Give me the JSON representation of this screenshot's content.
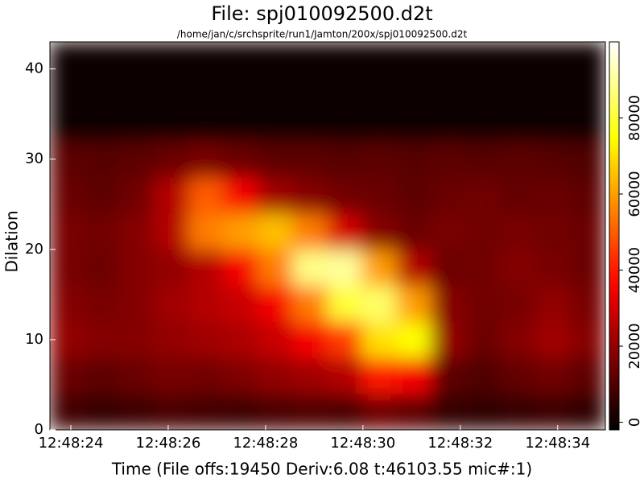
{
  "chart_data": {
    "type": "heatmap",
    "title": "File: spj010092500.d2t",
    "subtitle": "/home/jan/c/srchsprite/run1/Jamton/200x/spj010092500.d2t",
    "x_label": "Time (File offs:19450 Deriv:6.08 t:46103.55 mic#:1)",
    "y_label": "Dilation",
    "xlim": [
      23.57,
      34.98
    ],
    "xticks": [
      {
        "value": 24,
        "label": "12:48:24"
      },
      {
        "value": 26,
        "label": "12:48:26"
      },
      {
        "value": 28,
        "label": "12:48:28"
      },
      {
        "value": 30,
        "label": "12:48:30"
      },
      {
        "value": 32,
        "label": "12:48:32"
      },
      {
        "value": 34,
        "label": "12:48:34"
      }
    ],
    "ylim": [
      0,
      43
    ],
    "yticks": [
      0,
      10,
      20,
      30,
      40
    ],
    "ybins": [
      0,
      4,
      8,
      12,
      16,
      20,
      24,
      28,
      32,
      43
    ],
    "zlim": [
      -2000,
      100000
    ],
    "zticks": [
      0,
      20000,
      40000,
      60000,
      80000
    ],
    "colormap": "hot",
    "values": [
      [
        8000,
        6000,
        7000,
        9000,
        8000,
        7000,
        9000,
        10000,
        9000,
        15000,
        12000,
        6000,
        5000,
        6000,
        7000,
        5000
      ],
      [
        14000,
        12000,
        14000,
        16000,
        15000,
        17000,
        20000,
        22000,
        25000,
        40000,
        35000,
        12000,
        10000,
        13000,
        15000,
        12000
      ],
      [
        20000,
        18000,
        18000,
        20000,
        22000,
        24000,
        28000,
        35000,
        45000,
        70000,
        75000,
        20000,
        14000,
        18000,
        22000,
        18000
      ],
      [
        18000,
        16000,
        18000,
        22000,
        25000,
        28000,
        35000,
        55000,
        80000,
        85000,
        60000,
        18000,
        15000,
        16000,
        20000,
        16000
      ],
      [
        16000,
        14000,
        18000,
        20000,
        25000,
        35000,
        55000,
        88000,
        90000,
        60000,
        25000,
        14000,
        15000,
        18000,
        16000,
        14000
      ],
      [
        16000,
        15000,
        18000,
        25000,
        55000,
        60000,
        65000,
        55000,
        30000,
        18000,
        14000,
        16000,
        15000,
        16000,
        15000,
        14000
      ],
      [
        14000,
        12000,
        15000,
        25000,
        50000,
        35000,
        22000,
        18000,
        15000,
        14000,
        12000,
        14000,
        15000,
        13000,
        14000,
        12000
      ],
      [
        12000,
        11000,
        12000,
        14000,
        16000,
        14000,
        12000,
        12000,
        11000,
        12000,
        11000,
        12000,
        11000,
        12000,
        11000,
        10000
      ],
      [
        0,
        0,
        0,
        0,
        0,
        0,
        0,
        0,
        0,
        0,
        0,
        0,
        0,
        0,
        0,
        0
      ]
    ]
  }
}
